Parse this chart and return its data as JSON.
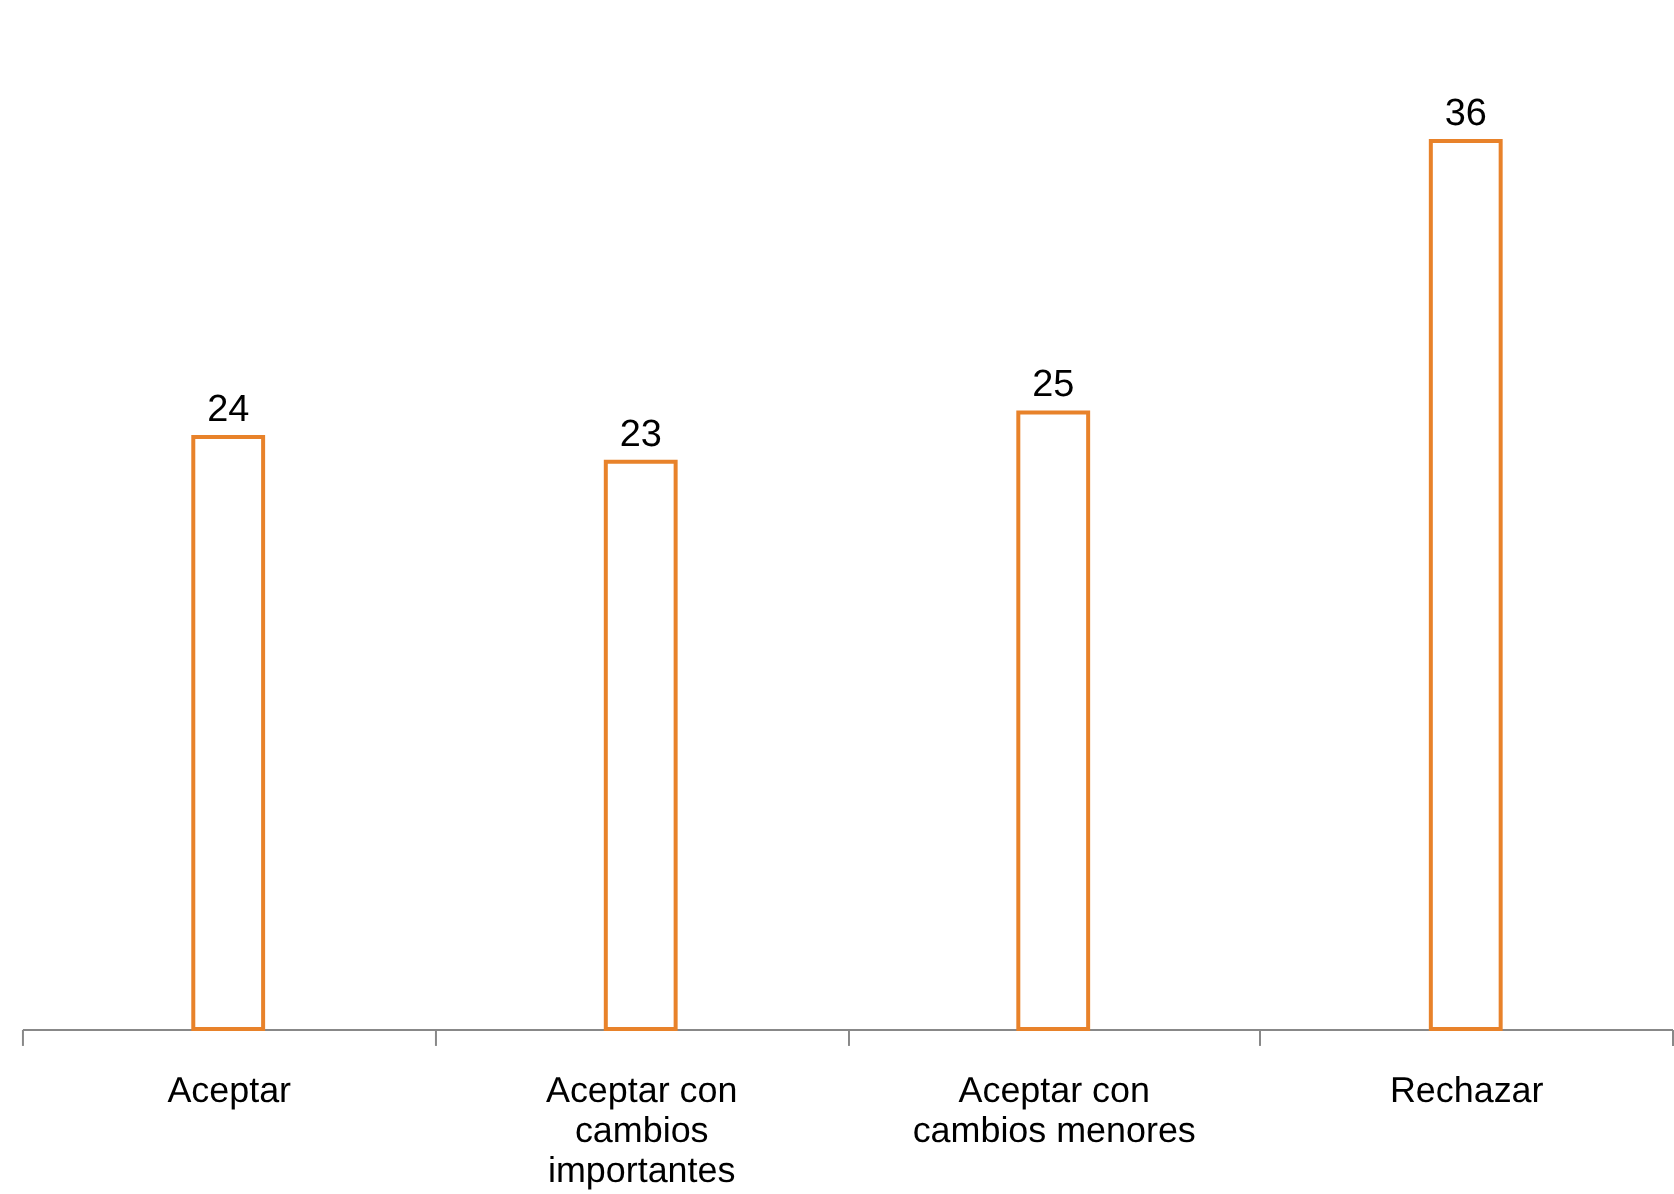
{
  "chart_data": {
    "type": "bar",
    "categories": [
      "Aceptar",
      "Aceptar con cambios importantes",
      "Aceptar con cambios menores",
      "Rechazar"
    ],
    "values": [
      24,
      23,
      25,
      36
    ],
    "color": "#e8822a",
    "data_labels": true,
    "grid": false
  }
}
